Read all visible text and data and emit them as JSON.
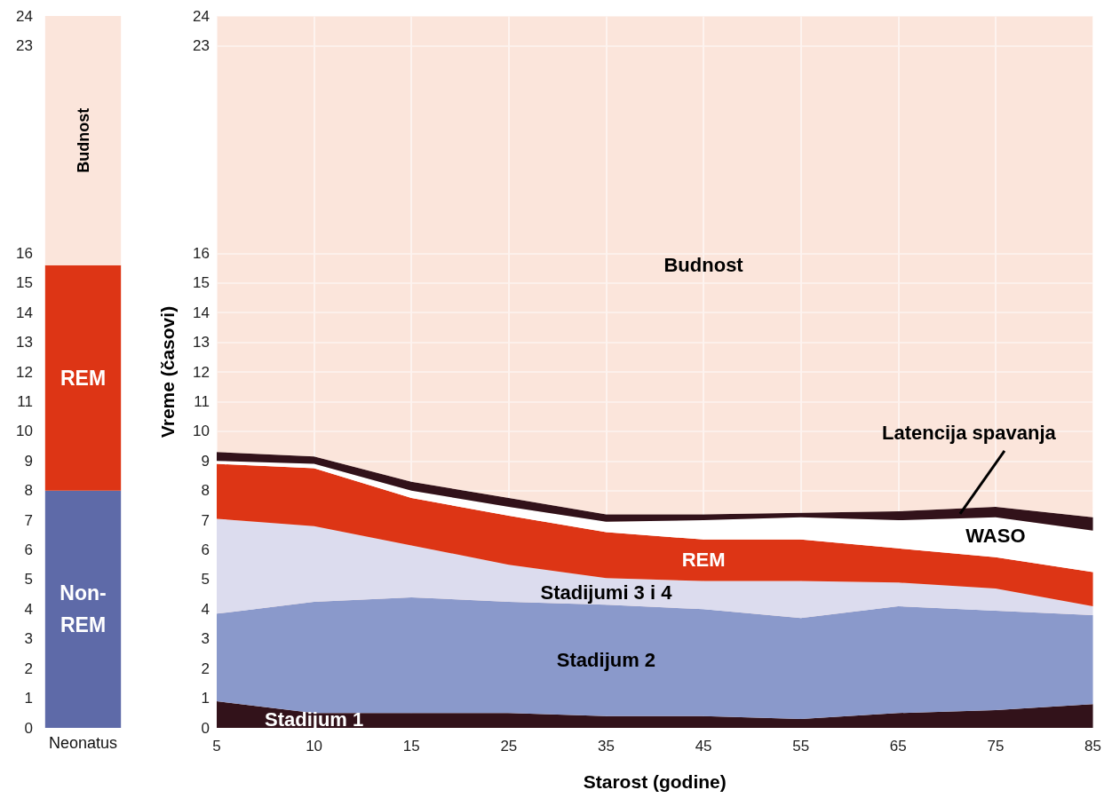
{
  "chart_data": [
    {
      "type": "bar",
      "stacked": true,
      "categories": [
        "Neonatus"
      ],
      "ylim": [
        0,
        24
      ],
      "yticks": [
        0,
        1,
        2,
        3,
        4,
        5,
        6,
        7,
        8,
        9,
        10,
        11,
        12,
        13,
        14,
        15,
        16,
        23,
        24
      ],
      "series": [
        {
          "name": "Non-REM",
          "color": "#5e6aa8",
          "values": [
            8
          ]
        },
        {
          "name": "REM",
          "color": "#dd3515",
          "values": [
            7.6
          ]
        },
        {
          "name": "Budnost",
          "color": "#fbe5db",
          "values": [
            8.4
          ]
        }
      ]
    },
    {
      "type": "area",
      "stacked": true,
      "grid": true,
      "xlabel": "Starost (godine)",
      "ylabel": "Vreme (časovi)",
      "categories": [
        "5",
        "10",
        "15",
        "25",
        "35",
        "45",
        "55",
        "65",
        "75",
        "85"
      ],
      "ylim": [
        0,
        24
      ],
      "yticks": [
        0,
        1,
        2,
        3,
        4,
        5,
        6,
        7,
        8,
        9,
        10,
        11,
        12,
        13,
        14,
        15,
        16,
        23,
        24
      ],
      "series": [
        {
          "name": "Stadijum 1",
          "color": "#32121a",
          "values": [
            0.9,
            0.5,
            0.5,
            0.5,
            0.4,
            0.4,
            0.3,
            0.5,
            0.6,
            0.8
          ]
        },
        {
          "name": "Stadijum 2",
          "color": "#8a99cb",
          "values": [
            2.95,
            3.75,
            3.9,
            3.75,
            3.75,
            3.6,
            3.4,
            3.6,
            3.35,
            3.0
          ]
        },
        {
          "name": "Stadijumi 3 i 4",
          "color": "#dcdcee",
          "values": [
            3.2,
            2.55,
            1.75,
            1.25,
            0.9,
            0.95,
            1.25,
            0.8,
            0.75,
            0.3
          ]
        },
        {
          "name": "REM",
          "color": "#dd3515",
          "values": [
            1.85,
            1.95,
            1.6,
            1.65,
            1.55,
            1.4,
            1.4,
            1.15,
            1.05,
            1.15
          ]
        },
        {
          "name": "WASO",
          "color": "#ffffff",
          "values": [
            0.1,
            0.15,
            0.25,
            0.3,
            0.35,
            0.65,
            0.75,
            0.95,
            1.35,
            1.4
          ]
        },
        {
          "name": "Latencija spavanja",
          "color": "#32121a",
          "values": [
            0.3,
            0.25,
            0.3,
            0.3,
            0.25,
            0.2,
            0.15,
            0.3,
            0.35,
            0.45
          ]
        },
        {
          "name": "Budnost",
          "color": "#fbe5db",
          "values": [
            14.7,
            14.85,
            15.7,
            16.25,
            16.8,
            16.8,
            16.75,
            16.7,
            16.55,
            16.9
          ]
        }
      ]
    }
  ]
}
